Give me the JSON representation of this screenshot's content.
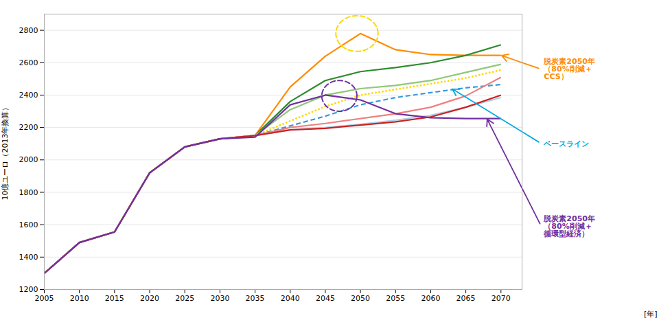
{
  "chart_data": {
    "type": "line",
    "xlabel": "[年]",
    "ylabel": "10億ユーロ（2013年換算）",
    "x": [
      2005,
      2010,
      2015,
      2020,
      2025,
      2030,
      2035,
      2040,
      2045,
      2050,
      2055,
      2060,
      2065,
      2070
    ],
    "series": [
      {
        "color": "#FF8C00",
        "line_style": "solid",
        "values": [
          1300,
          1490,
          1555,
          1920,
          2080,
          2130,
          2150,
          2450,
          2640,
          2780,
          2680,
          2650,
          2645,
          2645
        ]
      },
      {
        "color": "#2E8B2E",
        "line_style": "solid",
        "values": [
          1300,
          1490,
          1555,
          1920,
          2080,
          2130,
          2150,
          2360,
          2490,
          2545,
          2570,
          2600,
          2645,
          2710
        ]
      },
      {
        "color": "#90C878",
        "line_style": "solid",
        "values": [
          1300,
          1490,
          1555,
          1920,
          2080,
          2130,
          2150,
          2310,
          2400,
          2440,
          2460,
          2490,
          2540,
          2590
        ]
      },
      {
        "color": "#FFD700",
        "line_style": "dotted",
        "values": [
          1300,
          1490,
          1555,
          1920,
          2080,
          2130,
          2150,
          2240,
          2330,
          2400,
          2435,
          2470,
          2505,
          2555
        ]
      },
      {
        "color": "#3399DD",
        "line_style": "dashed",
        "values": [
          1300,
          1490,
          1555,
          1920,
          2080,
          2130,
          2150,
          2210,
          2270,
          2340,
          2385,
          2415,
          2445,
          2465
        ]
      },
      {
        "color": "#F08080",
        "line_style": "solid",
        "values": [
          1300,
          1490,
          1555,
          1920,
          2080,
          2130,
          2150,
          2200,
          2225,
          2255,
          2285,
          2325,
          2395,
          2510
        ]
      },
      {
        "color": "#B0D0E8",
        "line_style": "solid",
        "values": [
          1300,
          1490,
          1555,
          1920,
          2080,
          2130,
          2150,
          2185,
          2200,
          2220,
          2245,
          2275,
          2325,
          2385
        ]
      },
      {
        "color": "#CC2222",
        "line_style": "solid",
        "values": [
          1300,
          1490,
          1555,
          1920,
          2080,
          2130,
          2150,
          2185,
          2195,
          2215,
          2235,
          2265,
          2325,
          2400
        ]
      },
      {
        "color": "#7030A0",
        "line_style": "solid",
        "values": [
          1300,
          1490,
          1555,
          1920,
          2080,
          2130,
          2140,
          2340,
          2400,
          2370,
          2285,
          2260,
          2255,
          2255
        ]
      }
    ],
    "xlim": [
      2005,
      2073
    ],
    "ylim": [
      1200,
      2900
    ],
    "xticks": [
      2005,
      2010,
      2015,
      2020,
      2025,
      2030,
      2035,
      2040,
      2045,
      2050,
      2055,
      2060,
      2065,
      2070
    ],
    "yticks": [
      1200,
      1400,
      1600,
      1800,
      2000,
      2200,
      2400,
      2600,
      2800
    ],
    "grid": "y",
    "annotations": [
      {
        "text": "脱炭素2050年\n（80%削減＋\nCCS）",
        "color": "#FF8C00",
        "x": 2070,
        "y": 2645
      },
      {
        "text": "ベースライン",
        "color": "#00AADD",
        "x": 2063,
        "y": 2440
      },
      {
        "text": "脱炭素2050年\n（80%削減＋\n循環型経済）",
        "color": "#7030A0",
        "x": 2068,
        "y": 2255
      }
    ],
    "highlights": [
      {
        "x": 2049.5,
        "y": 2780,
        "width": 6,
        "height": 220,
        "color": "#FFD700",
        "line_style": "dashed"
      },
      {
        "x": 2047,
        "y": 2395,
        "width": 5,
        "height": 190,
        "color": "#7030A0",
        "line_style": "dashed"
      }
    ]
  }
}
